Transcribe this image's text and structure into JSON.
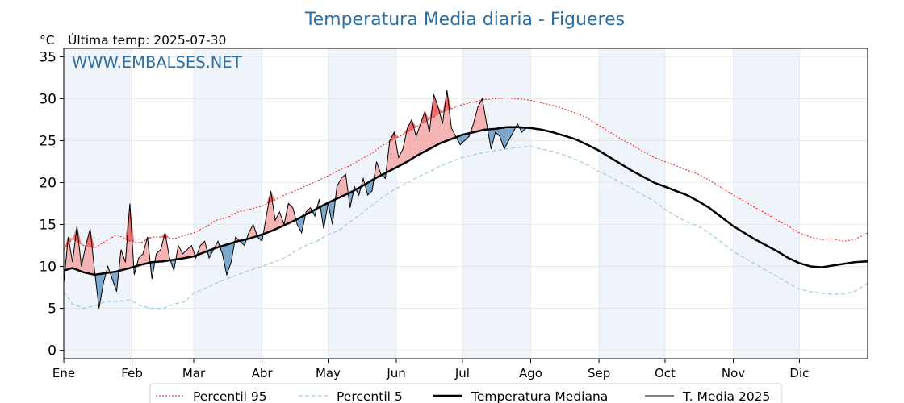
{
  "chart_data": {
    "type": "line",
    "title": "Temperatura Media diaria - Figueres",
    "unit": "°C",
    "last_update": "Última temp: 2025-07-30",
    "watermark": "WWW.EMBALSES.NET",
    "yticks": [
      0,
      5,
      10,
      15,
      20,
      25,
      30,
      35
    ],
    "ylim": [
      -1,
      36
    ],
    "xlim": [
      1,
      366
    ],
    "months": [
      {
        "label": "Ene",
        "day": 1
      },
      {
        "label": "Feb",
        "day": 32
      },
      {
        "label": "Mar",
        "day": 60
      },
      {
        "label": "Abr",
        "day": 91
      },
      {
        "label": "May",
        "day": 121
      },
      {
        "label": "Jun",
        "day": 152
      },
      {
        "label": "Jul",
        "day": 182
      },
      {
        "label": "Ago",
        "day": 213
      },
      {
        "label": "Sep",
        "day": 244
      },
      {
        "label": "Oct",
        "day": 274
      },
      {
        "label": "Nov",
        "day": 305
      },
      {
        "label": "Dic",
        "day": 335
      }
    ],
    "series": [
      {
        "name": "Percentil 95",
        "color": "#e41a1c",
        "style": "dotted",
        "x": [
          1,
          5,
          10,
          15,
          20,
          25,
          31,
          36,
          41,
          46,
          51,
          56,
          60,
          66,
          70,
          75,
          80,
          85,
          91,
          96,
          101,
          106,
          111,
          116,
          121,
          126,
          131,
          136,
          141,
          146,
          152,
          157,
          162,
          167,
          172,
          177,
          182,
          187,
          192,
          197,
          202,
          207,
          213,
          218,
          223,
          228,
          233,
          238,
          244,
          249,
          254,
          259,
          264,
          269,
          274,
          279,
          284,
          289,
          294,
          299,
          305,
          310,
          315,
          320,
          325,
          330,
          335,
          340,
          345,
          350,
          355,
          360,
          366
        ],
        "y": [
          12.0,
          13.3,
          12.5,
          12.2,
          13.0,
          13.8,
          13.0,
          12.8,
          13.5,
          13.5,
          13.3,
          13.7,
          14.0,
          14.8,
          15.5,
          15.8,
          16.5,
          16.8,
          17.2,
          17.8,
          18.5,
          19.0,
          19.6,
          20.2,
          20.8,
          21.5,
          22.0,
          22.8,
          23.5,
          24.5,
          25.3,
          26.0,
          26.8,
          27.5,
          28.3,
          28.8,
          29.3,
          29.6,
          29.9,
          30.0,
          30.1,
          30.0,
          29.8,
          29.5,
          29.2,
          28.8,
          28.3,
          27.8,
          26.8,
          26.0,
          25.2,
          24.5,
          23.7,
          23.0,
          22.5,
          22.0,
          21.5,
          21.0,
          20.3,
          19.5,
          18.5,
          17.8,
          17.0,
          16.3,
          15.5,
          14.8,
          14.0,
          13.5,
          13.2,
          13.3,
          13.0,
          13.2,
          14.0
        ]
      },
      {
        "name": "Percentil 5",
        "color": "#9ecae1",
        "style": "dashed",
        "x": [
          1,
          5,
          10,
          15,
          20,
          25,
          31,
          36,
          41,
          46,
          51,
          56,
          60,
          66,
          70,
          75,
          80,
          85,
          91,
          96,
          101,
          106,
          111,
          116,
          121,
          126,
          131,
          136,
          141,
          146,
          152,
          157,
          162,
          167,
          172,
          177,
          182,
          187,
          192,
          197,
          202,
          207,
          213,
          218,
          223,
          228,
          233,
          238,
          244,
          249,
          254,
          259,
          264,
          269,
          274,
          279,
          284,
          289,
          294,
          299,
          305,
          310,
          315,
          320,
          325,
          330,
          335,
          340,
          345,
          350,
          355,
          360,
          366
        ],
        "y": [
          7.0,
          5.5,
          5.0,
          5.3,
          5.8,
          5.8,
          6.0,
          5.3,
          5.0,
          5.0,
          5.5,
          5.8,
          6.8,
          7.5,
          8.0,
          8.5,
          9.0,
          9.5,
          10.0,
          10.5,
          11.0,
          11.8,
          12.5,
          13.0,
          13.8,
          14.3,
          15.3,
          16.3,
          17.3,
          18.3,
          19.3,
          20.0,
          20.7,
          21.3,
          22.0,
          22.5,
          23.0,
          23.3,
          23.6,
          23.8,
          24.0,
          24.2,
          24.3,
          24.0,
          23.7,
          23.3,
          22.8,
          22.2,
          21.3,
          20.7,
          20.0,
          19.3,
          18.5,
          17.8,
          16.8,
          16.0,
          15.3,
          14.8,
          14.0,
          13.0,
          11.8,
          11.0,
          10.3,
          9.5,
          8.8,
          8.0,
          7.3,
          7.0,
          6.8,
          6.7,
          6.7,
          7.0,
          8.0
        ]
      },
      {
        "name": "Temperatura Mediana",
        "color": "#000000",
        "style": "solid-thick",
        "x": [
          1,
          5,
          10,
          15,
          20,
          25,
          31,
          36,
          41,
          46,
          51,
          56,
          60,
          66,
          70,
          75,
          80,
          85,
          91,
          96,
          101,
          106,
          111,
          116,
          121,
          126,
          131,
          136,
          141,
          146,
          152,
          157,
          162,
          167,
          172,
          177,
          182,
          187,
          192,
          197,
          202,
          207,
          213,
          218,
          223,
          228,
          233,
          238,
          244,
          249,
          254,
          259,
          264,
          269,
          274,
          279,
          284,
          289,
          294,
          299,
          305,
          310,
          315,
          320,
          325,
          330,
          335,
          340,
          345,
          350,
          355,
          360,
          366
        ],
        "y": [
          9.5,
          9.8,
          9.3,
          9.0,
          9.2,
          9.4,
          9.8,
          10.2,
          10.5,
          10.6,
          10.8,
          11.0,
          11.2,
          11.8,
          12.2,
          12.6,
          13.0,
          13.3,
          13.8,
          14.3,
          14.9,
          15.5,
          16.2,
          16.9,
          17.6,
          18.2,
          18.8,
          19.5,
          20.3,
          21.0,
          21.8,
          22.5,
          23.3,
          24.0,
          24.7,
          25.2,
          25.7,
          26.0,
          26.3,
          26.4,
          26.6,
          26.6,
          26.5,
          26.3,
          26.0,
          25.6,
          25.2,
          24.6,
          23.8,
          23.0,
          22.2,
          21.4,
          20.7,
          20.0,
          19.5,
          19.0,
          18.5,
          17.8,
          17.0,
          16.0,
          14.8,
          14.0,
          13.2,
          12.5,
          11.8,
          11.0,
          10.4,
          10.0,
          9.9,
          10.1,
          10.3,
          10.5,
          10.6
        ]
      },
      {
        "name": "T. Media 2025",
        "color": "#000000",
        "style": "solid-thin",
        "x": [
          1,
          3,
          5,
          7,
          9,
          11,
          13,
          15,
          17,
          19,
          21,
          23,
          25,
          27,
          29,
          31,
          33,
          35,
          37,
          39,
          41,
          43,
          45,
          47,
          49,
          51,
          53,
          55,
          57,
          59,
          61,
          63,
          65,
          67,
          69,
          71,
          73,
          75,
          77,
          79,
          81,
          83,
          85,
          87,
          89,
          91,
          93,
          95,
          97,
          99,
          101,
          103,
          105,
          107,
          109,
          111,
          113,
          115,
          117,
          119,
          121,
          123,
          125,
          127,
          129,
          131,
          133,
          135,
          137,
          139,
          141,
          143,
          145,
          147,
          149,
          151,
          153,
          155,
          157,
          159,
          161,
          163,
          165,
          167,
          169,
          171,
          173,
          175,
          177,
          179,
          181,
          183,
          185,
          187,
          189,
          191,
          193,
          195,
          197,
          199,
          201,
          203,
          205,
          207,
          209,
          211
        ],
        "y": [
          8.0,
          13.5,
          10.5,
          14.8,
          10.0,
          12.5,
          14.5,
          9.5,
          5.0,
          8.0,
          10.0,
          8.5,
          7.0,
          12.0,
          10.5,
          17.5,
          9.0,
          11.0,
          11.5,
          13.5,
          8.5,
          11.5,
          12.0,
          14.0,
          11.0,
          9.5,
          12.5,
          11.5,
          12.0,
          12.5,
          11.0,
          12.5,
          13.0,
          11.0,
          12.0,
          13.0,
          11.5,
          9.0,
          10.5,
          13.5,
          13.0,
          12.5,
          14.0,
          15.0,
          13.5,
          13.0,
          16.0,
          19.0,
          15.5,
          16.5,
          15.0,
          17.5,
          17.0,
          15.0,
          14.0,
          16.5,
          17.0,
          16.0,
          18.0,
          14.5,
          17.5,
          15.0,
          19.5,
          20.5,
          21.0,
          17.0,
          19.5,
          18.5,
          20.5,
          18.5,
          19.0,
          22.5,
          21.0,
          20.5,
          25.0,
          26.0,
          23.0,
          24.0,
          26.5,
          27.5,
          25.5,
          27.0,
          28.5,
          26.0,
          30.5,
          29.0,
          27.0,
          31.0,
          26.5,
          25.5,
          24.5,
          25.0,
          25.5,
          27.0,
          29.0,
          30.0,
          27.0,
          24.0,
          26.0,
          25.5,
          24.0,
          25.0,
          26.0,
          27.0,
          26.0,
          26.5
        ]
      }
    ],
    "legend": {
      "placement": "bottom-center",
      "entries": [
        "Percentil 95",
        "Percentil 5",
        "Temperatura Mediana",
        "T. Media 2025"
      ]
    }
  }
}
